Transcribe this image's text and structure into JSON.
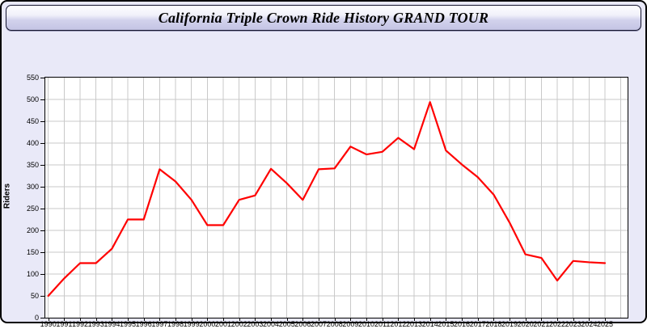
{
  "window": {
    "title": "California Triple Crown Ride History GRAND TOUR"
  },
  "chart_data": {
    "type": "line",
    "title": "California Triple Crown Ride History GRAND TOUR",
    "xlabel": "",
    "ylabel": "Riders",
    "x": [
      1990,
      1991,
      1992,
      1993,
      1994,
      1995,
      1996,
      1997,
      1998,
      1999,
      2000,
      2001,
      2002,
      2003,
      2004,
      2005,
      2006,
      2007,
      2008,
      2009,
      2010,
      2011,
      2012,
      2013,
      2014,
      2015,
      2016,
      2017,
      2018,
      2019,
      2020,
      2021,
      2022,
      2023,
      2024,
      2025
    ],
    "values": [
      50,
      90,
      125,
      125,
      158,
      225,
      225,
      340,
      312,
      270,
      212,
      212,
      270,
      280,
      341,
      308,
      270,
      340,
      342,
      392,
      374,
      380,
      412,
      386,
      494,
      383,
      351,
      322,
      282,
      218,
      145,
      137,
      85,
      130,
      127,
      125
    ],
    "ylim": [
      0,
      550
    ],
    "ytick_step": 50,
    "grid": true,
    "legend": "none",
    "line_color": "#ff0000",
    "grid_color": "#c9c9c9",
    "plot_bg": "#ffffff",
    "page_bg": "#e9e9f8"
  }
}
